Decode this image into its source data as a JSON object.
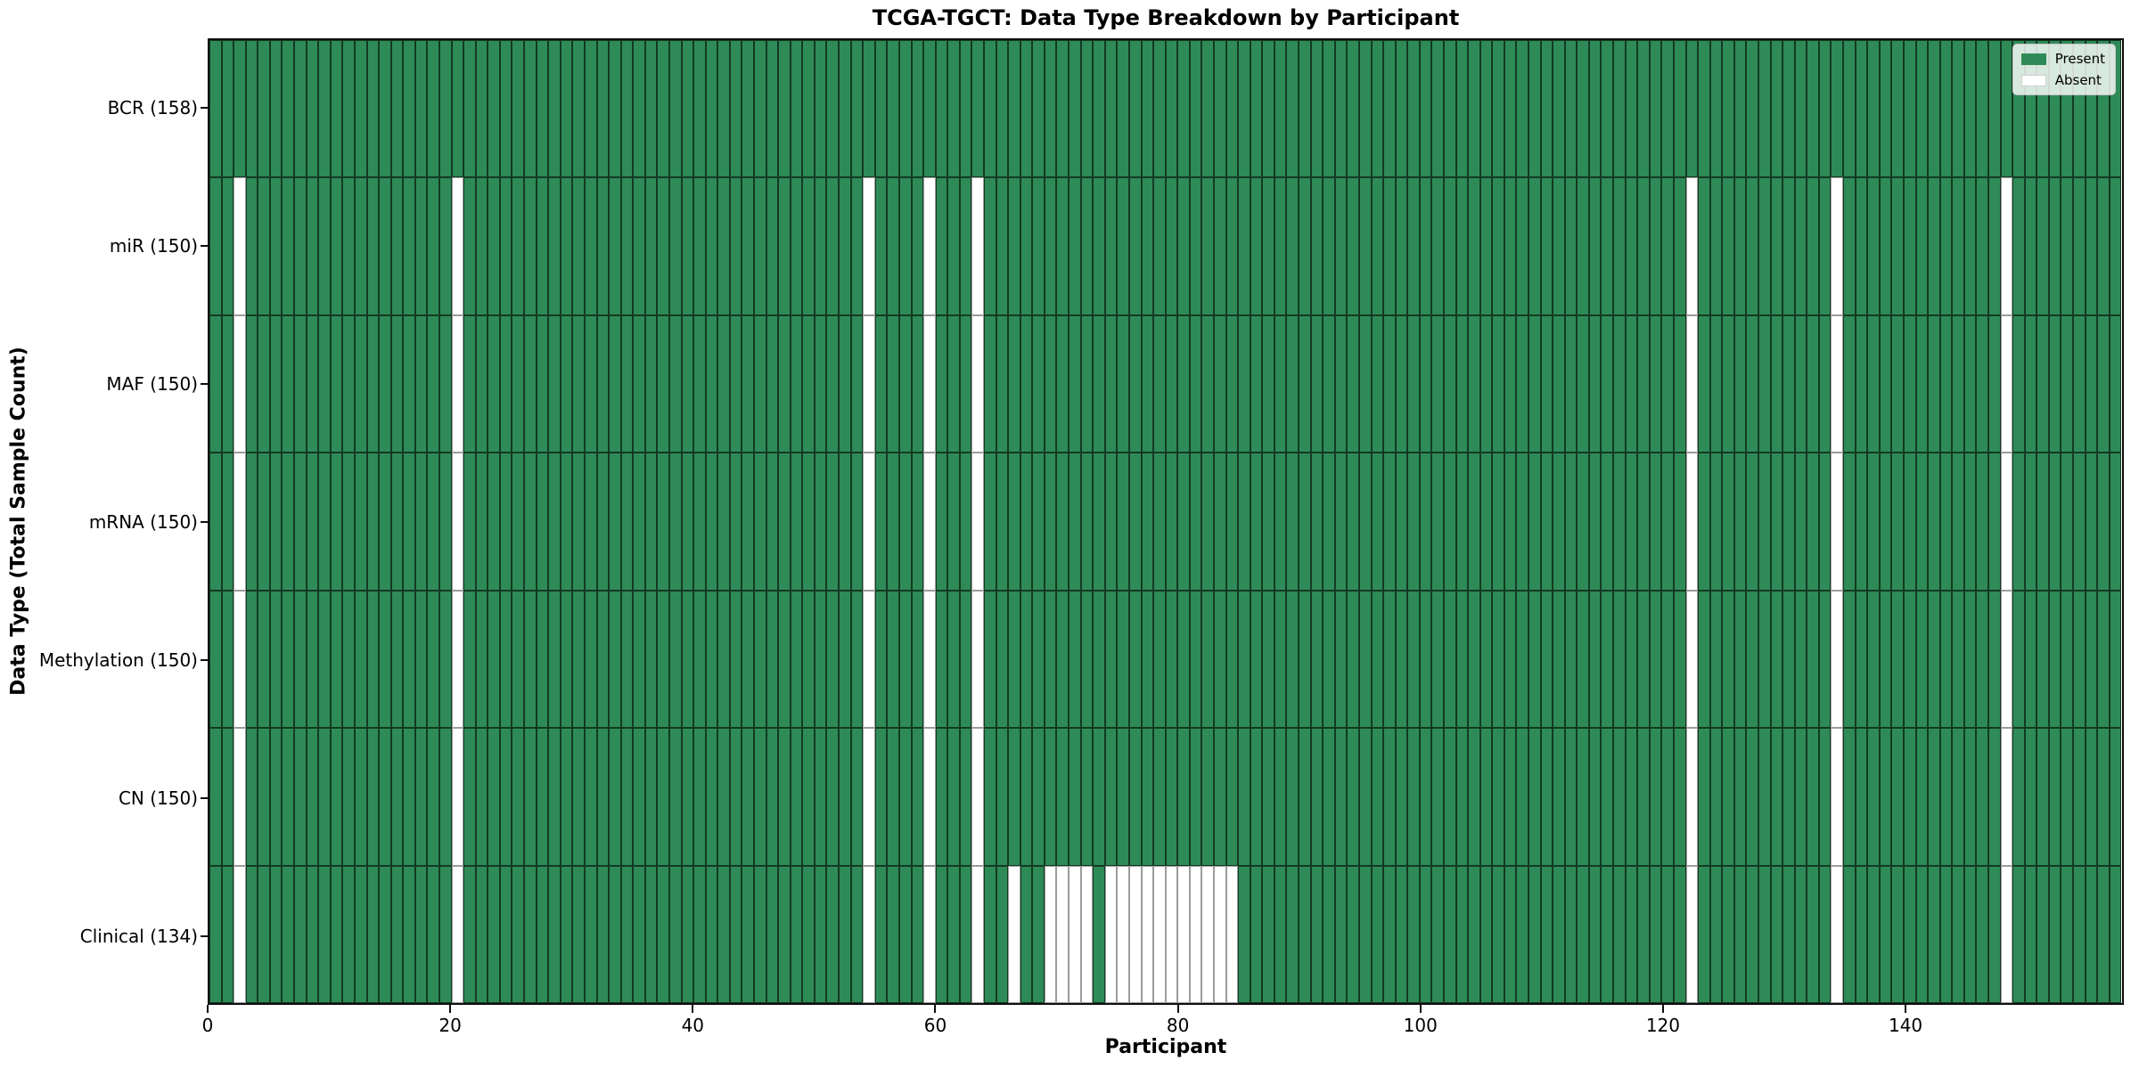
{
  "chart_data": {
    "type": "heatmap",
    "title": "TCGA-TGCT: Data Type Breakdown by Participant",
    "xlabel": "Participant",
    "ylabel": "Data Type (Total Sample Count)",
    "n_participants": 158,
    "x_ticks": [
      0,
      20,
      40,
      60,
      80,
      100,
      120,
      140
    ],
    "x_range": [
      0,
      158
    ],
    "grid": false,
    "legend_position": "upper right",
    "legend": [
      {
        "label": "Present",
        "color": "#2e8b57"
      },
      {
        "label": "Absent",
        "color": "#ffffff"
      }
    ],
    "colors": {
      "present": "#2e8b57",
      "absent": "#ffffff"
    },
    "rows": [
      {
        "label": "BCR (158)",
        "data_type": "BCR",
        "total": 158,
        "absent_participants": []
      },
      {
        "label": "miR (150)",
        "data_type": "miR",
        "total": 150,
        "absent_participants": [
          2,
          20,
          54,
          59,
          63,
          122,
          134,
          148
        ]
      },
      {
        "label": "MAF (150)",
        "data_type": "MAF",
        "total": 150,
        "absent_participants": [
          2,
          20,
          54,
          59,
          63,
          122,
          134,
          148
        ]
      },
      {
        "label": "mRNA (150)",
        "data_type": "mRNA",
        "total": 150,
        "absent_participants": [
          2,
          20,
          54,
          59,
          63,
          122,
          134,
          148
        ]
      },
      {
        "label": "Methylation (150)",
        "data_type": "Methylation",
        "total": 150,
        "absent_participants": [
          2,
          20,
          54,
          59,
          63,
          122,
          134,
          148
        ]
      },
      {
        "label": "CN (150)",
        "data_type": "CN",
        "total": 150,
        "absent_participants": [
          2,
          20,
          54,
          59,
          63,
          122,
          134,
          148
        ]
      },
      {
        "label": "Clinical (134)",
        "data_type": "Clinical",
        "total": 134,
        "absent_participants": [
          2,
          20,
          54,
          59,
          63,
          66,
          69,
          70,
          71,
          72,
          74,
          75,
          76,
          77,
          78,
          79,
          80,
          81,
          82,
          83,
          84,
          122,
          134,
          148
        ]
      }
    ]
  }
}
